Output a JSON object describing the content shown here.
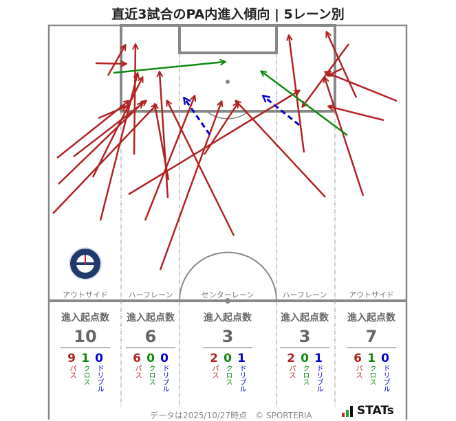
{
  "title": "直近3試合のPA内進入傾向 | 5レーン別",
  "colors": {
    "pass": "#b22222",
    "cross": "#118811",
    "dribble": "#0000cc",
    "line": "#888888"
  },
  "lanes": [
    {
      "label": "アウトサイド",
      "total": "10",
      "pass": "9",
      "cross": "1",
      "dribble": "0"
    },
    {
      "label": "ハーフレーン",
      "total": "6",
      "pass": "6",
      "cross": "0",
      "dribble": "0"
    },
    {
      "label": "センターレーン",
      "total": "3",
      "pass": "2",
      "cross": "0",
      "dribble": "1"
    },
    {
      "label": "ハーフレーン",
      "total": "3",
      "pass": "2",
      "cross": "0",
      "dribble": "1"
    },
    {
      "label": "アウトサイド",
      "total": "7",
      "pass": "6",
      "cross": "1",
      "dribble": "0"
    }
  ],
  "stat_header": "進入起点数",
  "type_labels": {
    "pass": "パス",
    "cross": "クロス",
    "dribble": "ドリブル"
  },
  "team_crest": "KAGOSHIMA UNITED FC",
  "footer": "データは2025/10/27時点　© SPORTERIA",
  "brand": "STATs"
}
